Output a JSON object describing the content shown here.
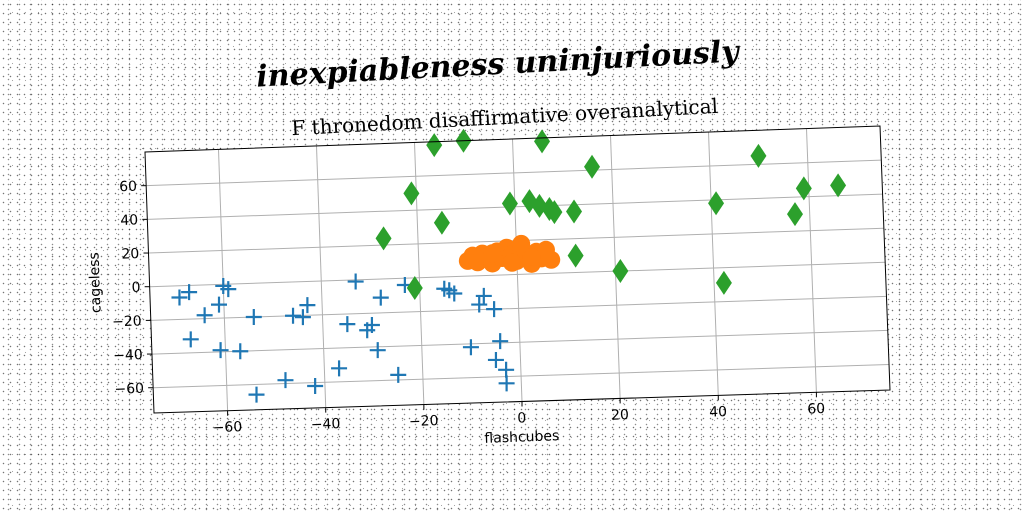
{
  "chart_data": {
    "type": "scatter",
    "suptitle": "inexpiableness uninjuriously",
    "title": "F thronedom disaffirmative overanalytical",
    "xlabel": "flashcubes",
    "ylabel": "cageless",
    "xlim": [
      -75,
      75
    ],
    "ylim": [
      -75,
      80
    ],
    "xticks": [
      -60,
      -40,
      -20,
      0,
      20,
      40,
      60
    ],
    "yticks": [
      -60,
      -40,
      -20,
      0,
      20,
      40,
      60
    ],
    "grid": true,
    "series": [
      {
        "marker": "plus",
        "color": "#1f77b4",
        "points": [
          [
            -69,
            -7
          ],
          [
            -67,
            -4
          ],
          [
            -67,
            -32
          ],
          [
            -64,
            -18
          ],
          [
            -61,
            -12
          ],
          [
            -60,
            -1
          ],
          [
            -59,
            -3
          ],
          [
            -61,
            -39
          ],
          [
            -57,
            -40
          ],
          [
            -54,
            -20
          ],
          [
            -54,
            -66
          ],
          [
            -48,
            -58
          ],
          [
            -46,
            -20
          ],
          [
            -44,
            -21
          ],
          [
            -43,
            -14
          ],
          [
            -42,
            -62
          ],
          [
            -37,
            -52
          ],
          [
            -35,
            -26
          ],
          [
            -33,
            -1
          ],
          [
            -31,
            -30
          ],
          [
            -30,
            -27
          ],
          [
            -29,
            -42
          ],
          [
            -28,
            -11
          ],
          [
            -25,
            -57
          ],
          [
            -23,
            -4
          ],
          [
            -15,
            -7
          ],
          [
            -14,
            -8
          ],
          [
            -13,
            -10
          ],
          [
            -10,
            -42
          ],
          [
            -8,
            -17
          ],
          [
            -7,
            -12
          ],
          [
            -5,
            -50
          ],
          [
            -5,
            -20
          ],
          [
            -4,
            -39
          ],
          [
            -3,
            -56
          ],
          [
            -3,
            -64
          ]
        ]
      },
      {
        "marker": "circle",
        "color": "#ff7f0e",
        "points": [
          [
            -10,
            9
          ],
          [
            -9,
            12
          ],
          [
            -8,
            8
          ],
          [
            -7,
            13
          ],
          [
            -6,
            11
          ],
          [
            -5,
            7
          ],
          [
            -4,
            14
          ],
          [
            -3,
            10
          ],
          [
            -2,
            16
          ],
          [
            -1,
            12
          ],
          [
            0,
            8
          ],
          [
            1,
            15
          ],
          [
            2,
            11
          ],
          [
            3,
            6
          ],
          [
            4,
            13
          ],
          [
            5,
            9
          ],
          [
            6,
            14
          ],
          [
            7,
            8
          ],
          [
            3,
            10
          ],
          [
            -1,
            7
          ],
          [
            -5,
            13
          ],
          [
            1,
            18
          ]
        ]
      },
      {
        "marker": "diamond",
        "color": "#2ca02c",
        "points": [
          [
            -16,
            78
          ],
          [
            -10,
            80
          ],
          [
            -27,
            24
          ],
          [
            -21,
            50
          ],
          [
            -21,
            -6
          ],
          [
            -15,
            32
          ],
          [
            6,
            78
          ],
          [
            16,
            62
          ],
          [
            3,
            43
          ],
          [
            5,
            40
          ],
          [
            7,
            38
          ],
          [
            -1,
            42
          ],
          [
            8,
            36
          ],
          [
            12,
            36
          ],
          [
            12,
            10
          ],
          [
            21,
            0
          ],
          [
            41,
            38
          ],
          [
            50,
            65
          ],
          [
            57,
            30
          ],
          [
            59,
            45
          ],
          [
            66,
            46
          ],
          [
            42,
            -9
          ]
        ]
      }
    ]
  }
}
